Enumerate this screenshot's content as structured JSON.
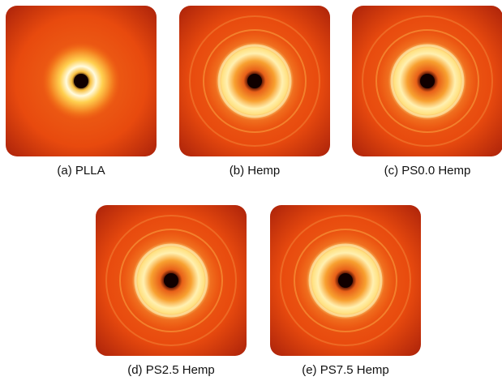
{
  "panels": [
    {
      "caption": "(a) PLLA"
    },
    {
      "caption": "(b) Hemp"
    },
    {
      "caption": "(c) PS0.0 Hemp"
    },
    {
      "caption": "(d) PS2.5 Hemp"
    },
    {
      "caption": "(e) PS7.5 Hemp"
    }
  ]
}
